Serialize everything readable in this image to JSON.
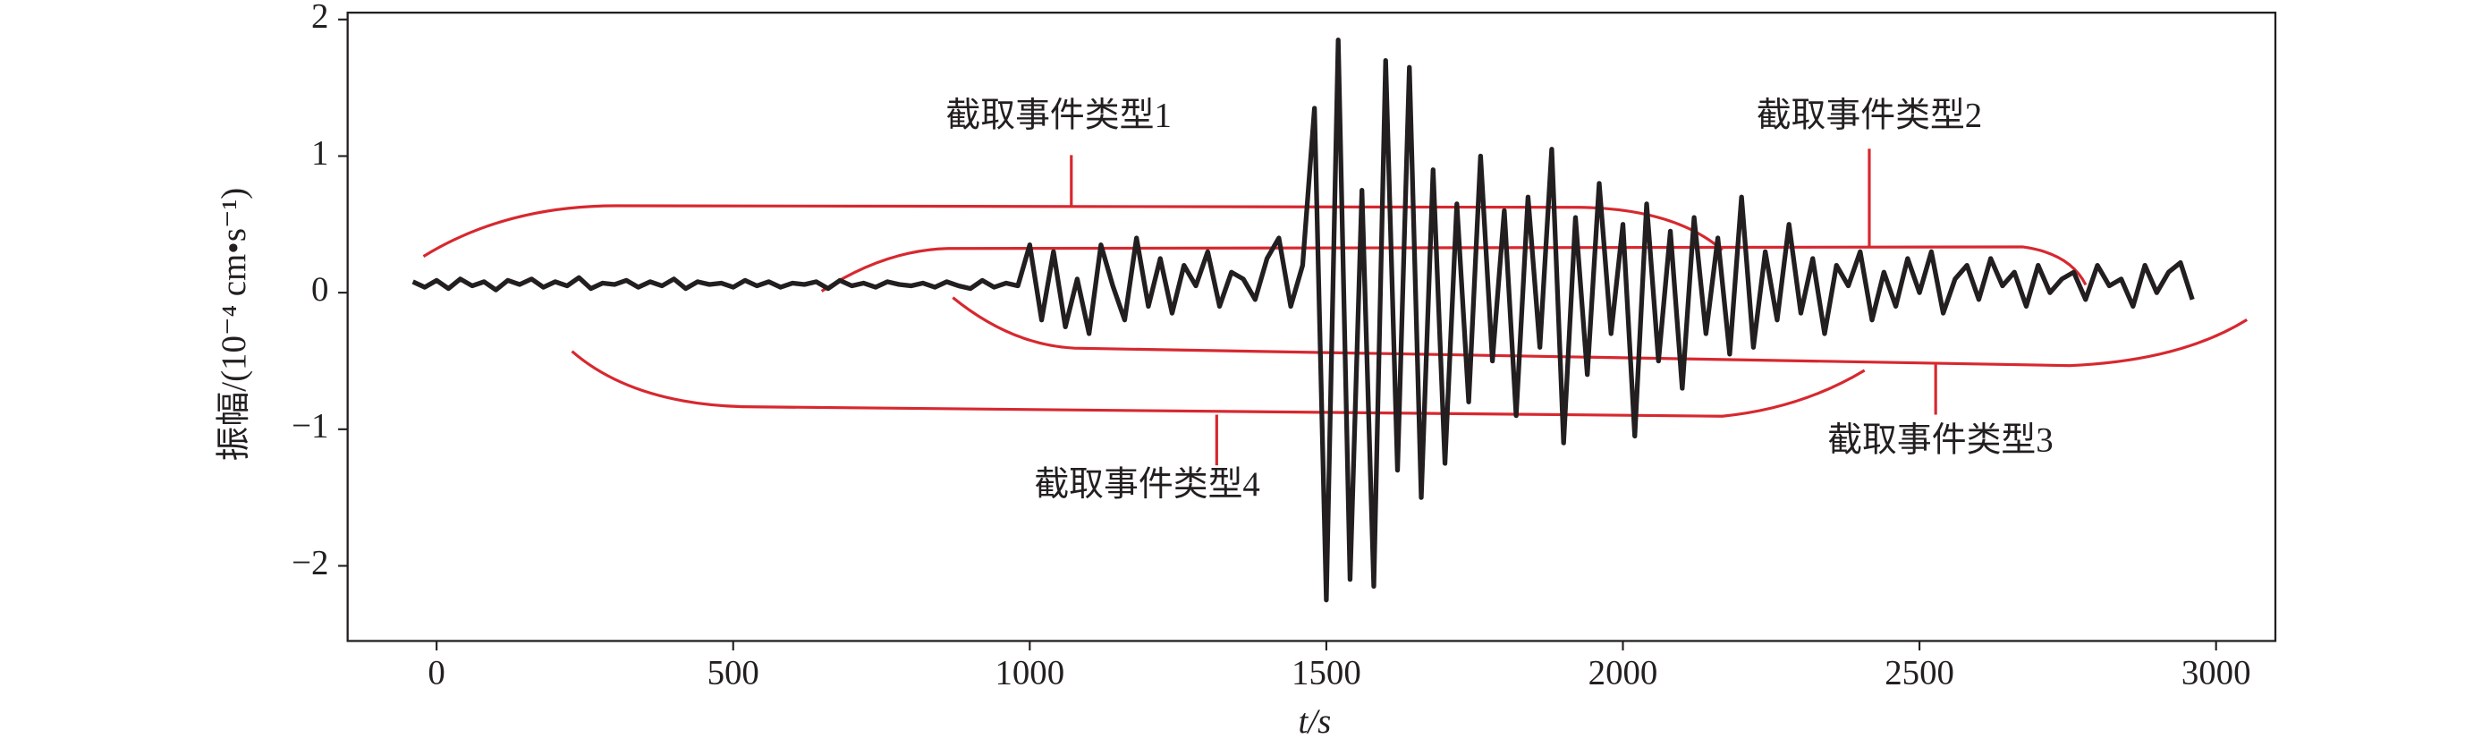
{
  "chart_data": {
    "type": "line",
    "xlabel": "t/s",
    "ylabel": "振幅/(10⁻⁴ cm•s⁻¹)",
    "color": "#231f20",
    "annotations": [
      "截取事件类型1",
      "截取事件类型2",
      "截取事件类型3",
      "截取事件类型4"
    ],
    "xlim": [
      -150,
      3100
    ],
    "ylim": [
      -2.55,
      2.05
    ],
    "xticks": [
      0,
      500,
      1000,
      1500,
      2000,
      2500,
      3000
    ],
    "yticks": [
      {
        "value": -2,
        "label": "−2"
      },
      {
        "value": -1,
        "label": "−1"
      },
      0,
      1,
      2
    ],
    "x": [
      -40,
      -20,
      0,
      20,
      40,
      60,
      80,
      100,
      120,
      140,
      160,
      180,
      200,
      220,
      240,
      260,
      280,
      300,
      320,
      340,
      360,
      380,
      400,
      420,
      440,
      460,
      480,
      500,
      520,
      540,
      560,
      580,
      600,
      620,
      640,
      660,
      680,
      700,
      720,
      740,
      760,
      780,
      800,
      820,
      840,
      860,
      880,
      900,
      920,
      940,
      960,
      980,
      1000,
      1020,
      1040,
      1060,
      1080,
      1100,
      1120,
      1140,
      1160,
      1180,
      1200,
      1220,
      1240,
      1260,
      1280,
      1300,
      1320,
      1340,
      1360,
      1380,
      1400,
      1420,
      1440,
      1460,
      1480,
      1500,
      1520,
      1540,
      1560,
      1580,
      1600,
      1620,
      1640,
      1660,
      1680,
      1700,
      1720,
      1740,
      1760,
      1780,
      1800,
      1820,
      1840,
      1860,
      1880,
      1900,
      1920,
      1940,
      1960,
      1980,
      2000,
      2020,
      2040,
      2060,
      2080,
      2100,
      2120,
      2140,
      2160,
      2180,
      2200,
      2220,
      2240,
      2260,
      2280,
      2300,
      2320,
      2340,
      2360,
      2380,
      2400,
      2420,
      2440,
      2460,
      2480,
      2500,
      2520,
      2540,
      2560,
      2580,
      2600,
      2620,
      2640,
      2660,
      2680,
      2700,
      2720,
      2740,
      2760,
      2780,
      2800,
      2820,
      2840,
      2860,
      2880,
      2900,
      2920,
      2940,
      2960
    ],
    "values": [
      0.08,
      0.04,
      0.09,
      0.03,
      0.1,
      0.05,
      0.08,
      0.02,
      0.09,
      0.06,
      0.1,
      0.04,
      0.08,
      0.05,
      0.11,
      0.03,
      0.07,
      0.06,
      0.09,
      0.04,
      0.08,
      0.05,
      0.1,
      0.03,
      0.08,
      0.06,
      0.07,
      0.04,
      0.09,
      0.05,
      0.08,
      0.04,
      0.07,
      0.06,
      0.08,
      0.03,
      0.09,
      0.05,
      0.07,
      0.04,
      0.08,
      0.06,
      0.05,
      0.07,
      0.04,
      0.08,
      0.05,
      0.03,
      0.09,
      0.04,
      0.07,
      0.05,
      0.35,
      -0.2,
      0.3,
      -0.25,
      0.1,
      -0.3,
      0.35,
      0.05,
      -0.2,
      0.4,
      -0.1,
      0.25,
      -0.15,
      0.2,
      0.05,
      0.3,
      -0.1,
      0.15,
      0.1,
      -0.05,
      0.25,
      0.4,
      -0.1,
      0.2,
      1.35,
      -2.25,
      1.85,
      -2.1,
      0.75,
      -2.15,
      1.7,
      -1.3,
      1.65,
      -1.5,
      0.9,
      -1.25,
      0.65,
      -0.8,
      1.0,
      -0.5,
      0.6,
      -0.9,
      0.7,
      -0.4,
      1.05,
      -1.1,
      0.55,
      -0.6,
      0.8,
      -0.3,
      0.5,
      -1.05,
      0.65,
      -0.5,
      0.45,
      -0.7,
      0.55,
      -0.3,
      0.4,
      -0.45,
      0.7,
      -0.4,
      0.3,
      -0.2,
      0.5,
      -0.15,
      0.25,
      -0.3,
      0.2,
      0.05,
      0.3,
      -0.2,
      0.15,
      -0.1,
      0.25,
      0.0,
      0.3,
      -0.15,
      0.1,
      0.2,
      -0.05,
      0.25,
      0.05,
      0.15,
      -0.1,
      0.2,
      0.0,
      0.1,
      0.15,
      -0.05,
      0.2,
      0.05,
      0.1,
      -0.1,
      0.2,
      0.0,
      0.15,
      0.22,
      -0.05
    ]
  }
}
